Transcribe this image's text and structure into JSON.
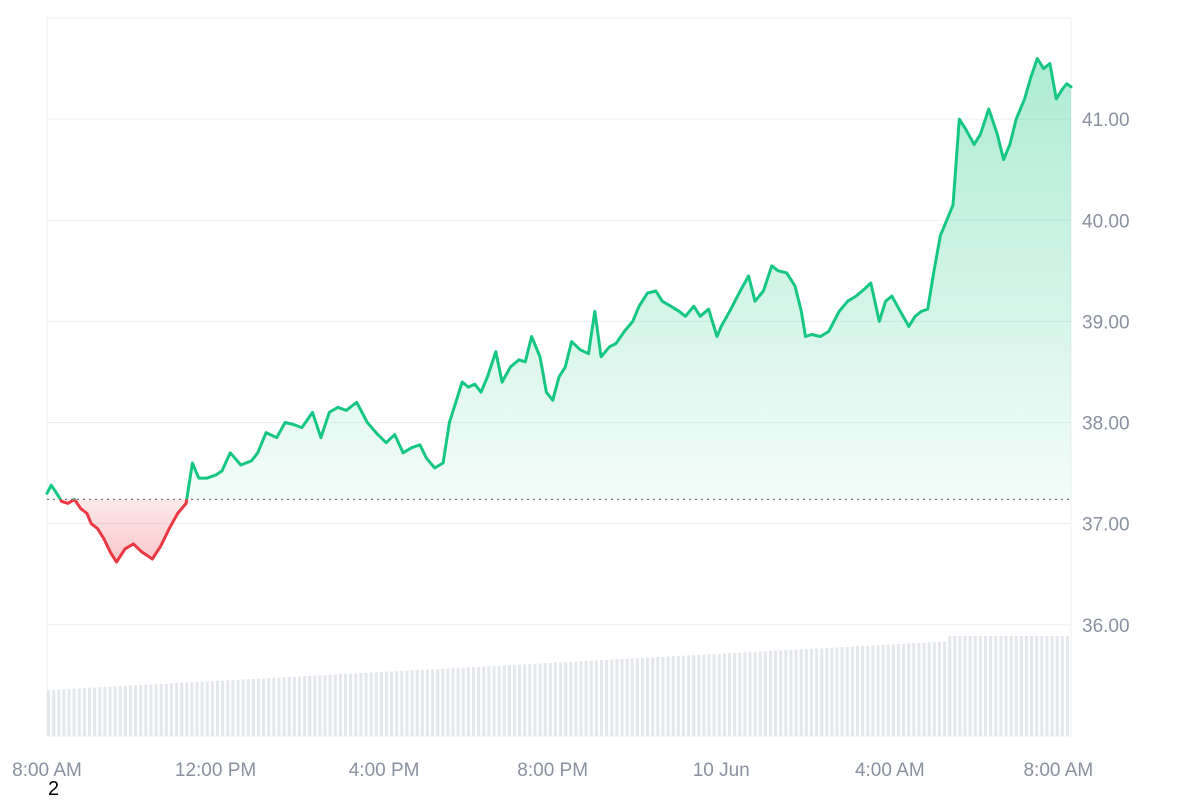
{
  "chart_data": {
    "type": "area",
    "baseline": 37.24,
    "ylim": [
      34.9,
      42.0
    ],
    "y_ticks": [
      36.0,
      37.0,
      38.0,
      39.0,
      40.0,
      41.0
    ],
    "y_tick_labels": [
      "36.00",
      "37.00",
      "38.00",
      "39.00",
      "40.00",
      "41.00"
    ],
    "x_ticks": [
      0,
      4,
      8,
      12,
      16,
      20,
      24
    ],
    "x_tick_labels": [
      "8:00 AM",
      "12:00 PM",
      "4:00 PM",
      "8:00 PM",
      "10 Jun",
      "4:00 AM",
      "8:00 AM"
    ],
    "xlim": [
      0,
      24.3
    ],
    "grid": true,
    "colors": {
      "up": "#16c784",
      "down": "#ea3943",
      "grid": "#eceff3",
      "tick": "#8a919e",
      "volume": "#e4e7ec"
    },
    "series": [
      {
        "x": [
          0,
          0.1,
          0.2,
          0.35,
          0.5,
          0.65,
          0.8,
          0.95,
          1.05,
          1.2,
          1.35,
          1.5,
          1.65,
          1.85,
          2.05,
          2.25,
          2.5,
          2.7,
          2.9,
          3.1,
          3.3,
          3.45,
          3.6,
          3.8,
          4.0,
          4.15,
          4.35,
          4.6,
          4.85,
          5.0,
          5.2,
          5.45,
          5.65,
          5.85,
          6.05,
          6.3,
          6.5,
          6.7,
          6.9,
          7.1,
          7.35,
          7.6,
          7.85,
          8.05,
          8.25,
          8.45,
          8.65,
          8.85,
          9.0,
          9.2,
          9.4,
          9.55,
          9.7,
          9.85,
          10.0,
          10.15,
          10.3,
          10.45,
          10.65,
          10.8,
          11.0,
          11.2,
          11.35,
          11.5,
          11.7,
          11.85,
          12.0,
          12.15,
          12.3,
          12.45,
          12.65,
          12.85,
          13.0,
          13.15,
          13.35,
          13.5,
          13.7,
          13.9,
          14.05,
          14.25,
          14.45,
          14.6,
          14.8,
          15.0,
          15.15,
          15.35,
          15.5,
          15.7,
          15.9,
          16.0,
          16.2,
          16.45,
          16.65,
          16.8,
          17.0,
          17.2,
          17.35,
          17.55,
          17.75,
          17.9,
          18.0,
          18.15,
          18.35,
          18.55,
          18.8,
          19.0,
          19.2,
          19.4,
          19.55,
          19.75,
          19.9,
          20.05,
          20.25,
          20.45,
          20.6,
          20.75,
          20.9,
          21.05,
          21.2,
          21.35,
          21.5,
          21.65,
          21.8,
          22.0,
          22.15,
          22.35,
          22.55,
          22.7,
          22.85,
          23.0,
          23.2,
          23.35,
          23.5,
          23.65,
          23.8,
          23.95,
          24.1,
          24.2,
          24.3
        ],
        "y": [
          37.3,
          37.38,
          37.32,
          37.22,
          37.2,
          37.24,
          37.15,
          37.1,
          37.0,
          36.95,
          36.85,
          36.72,
          36.62,
          36.75,
          36.8,
          36.72,
          36.65,
          36.78,
          36.95,
          37.1,
          37.2,
          37.6,
          37.45,
          37.45,
          37.48,
          37.52,
          37.7,
          37.58,
          37.62,
          37.7,
          37.9,
          37.85,
          38.0,
          37.98,
          37.95,
          38.1,
          37.85,
          38.1,
          38.15,
          38.12,
          38.2,
          38.0,
          37.88,
          37.8,
          37.88,
          37.7,
          37.75,
          37.78,
          37.65,
          37.55,
          37.6,
          38.0,
          38.2,
          38.4,
          38.35,
          38.38,
          38.3,
          38.45,
          38.7,
          38.4,
          38.55,
          38.62,
          38.6,
          38.85,
          38.65,
          38.3,
          38.22,
          38.45,
          38.55,
          38.8,
          38.72,
          38.68,
          39.1,
          38.65,
          38.75,
          38.78,
          38.9,
          39.0,
          39.15,
          39.28,
          39.3,
          39.2,
          39.15,
          39.1,
          39.05,
          39.15,
          39.05,
          39.12,
          38.85,
          38.95,
          39.1,
          39.3,
          39.45,
          39.2,
          39.3,
          39.55,
          39.5,
          39.48,
          39.35,
          39.1,
          38.85,
          38.87,
          38.85,
          38.9,
          39.1,
          39.2,
          39.25,
          39.32,
          39.38,
          39.0,
          39.2,
          39.25,
          39.1,
          38.95,
          39.05,
          39.1,
          39.12,
          39.5,
          39.85,
          40.0,
          40.15,
          41.0,
          40.9,
          40.75,
          40.85,
          41.1,
          40.85,
          40.6,
          40.75,
          41.0,
          41.2,
          41.42,
          41.6,
          41.5,
          41.55,
          41.2,
          41.3,
          41.35,
          41.32
        ]
      }
    ]
  },
  "footer": {
    "note": "2"
  }
}
